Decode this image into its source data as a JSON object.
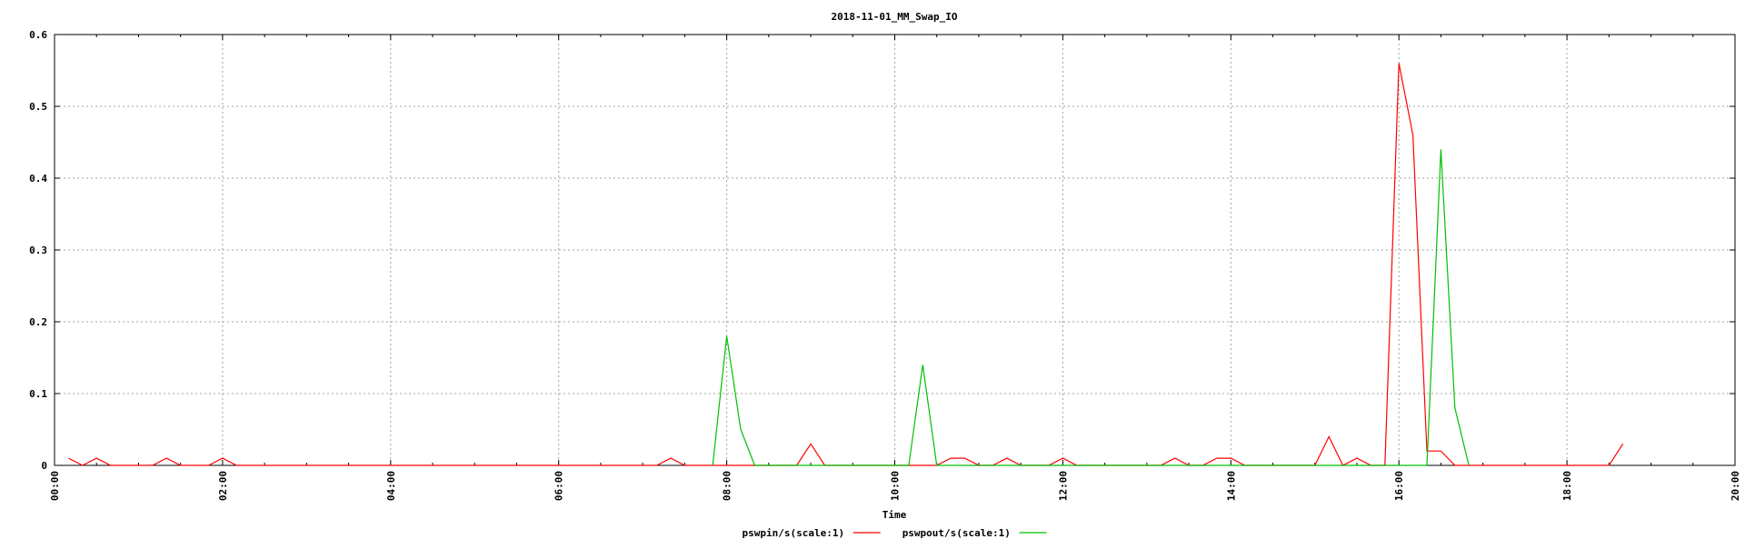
{
  "chart_data": {
    "type": "line",
    "title": "2018-11-01_MM_Swap_IO",
    "xlabel": "Time",
    "ylabel": "",
    "ylim": [
      0,
      0.6
    ],
    "xlim": [
      "00:00",
      "20:00"
    ],
    "yticks": [
      "0",
      "0.1",
      "0.2",
      "0.3",
      "0.4",
      "0.5",
      "0.6"
    ],
    "xticks": [
      "00:00",
      "02:00",
      "04:00",
      "06:00",
      "08:00",
      "10:00",
      "12:00",
      "14:00",
      "16:00",
      "18:00",
      "20:00"
    ],
    "grid": true,
    "legend_position": "bottom-center",
    "series": [
      {
        "name": "pswpin/s(scale:1)",
        "color": "#ff0000",
        "x": [
          "00:10",
          "00:20",
          "00:30",
          "00:40",
          "00:50",
          "01:00",
          "01:10",
          "01:20",
          "01:30",
          "01:40",
          "01:50",
          "02:00",
          "02:10",
          "02:20",
          "02:30",
          "07:00",
          "07:10",
          "07:20",
          "07:30",
          "08:50",
          "09:00",
          "09:10",
          "09:20",
          "10:20",
          "10:30",
          "10:40",
          "10:50",
          "11:00",
          "11:10",
          "11:20",
          "11:30",
          "11:40",
          "11:50",
          "12:00",
          "12:10",
          "12:20",
          "13:00",
          "13:10",
          "13:20",
          "13:30",
          "13:40",
          "13:50",
          "14:00",
          "14:10",
          "14:20",
          "14:30",
          "15:00",
          "15:10",
          "15:20",
          "15:30",
          "15:40",
          "15:50",
          "16:00",
          "16:10",
          "16:20",
          "16:30",
          "16:40",
          "16:50",
          "17:00",
          "18:20",
          "18:30",
          "18:40"
        ],
        "values": [
          0.01,
          0,
          0.01,
          0,
          0,
          0,
          0,
          0.01,
          0,
          0,
          0,
          0.01,
          0,
          0,
          0,
          0,
          0,
          0.01,
          0,
          0,
          0.03,
          0,
          0,
          0,
          0,
          0.01,
          0.01,
          0,
          0,
          0.01,
          0,
          0,
          0,
          0.01,
          0,
          0,
          0,
          0,
          0.01,
          0,
          0,
          0.01,
          0.01,
          0,
          0,
          0,
          0,
          0.04,
          0,
          0.01,
          0,
          0,
          0.56,
          0.46,
          0.02,
          0.02,
          0,
          0,
          0,
          0,
          0,
          0.03
        ]
      },
      {
        "name": "pswpout/s(scale:1)",
        "color": "#00c000",
        "x": [
          "07:50",
          "08:00",
          "08:10",
          "08:20",
          "08:30",
          "10:10",
          "10:20",
          "10:30",
          "10:40",
          "16:10",
          "16:20",
          "16:30",
          "16:40",
          "16:50"
        ],
        "values": [
          0,
          0.18,
          0.05,
          0,
          0,
          0,
          0.14,
          0,
          0,
          0,
          0,
          0.44,
          0.08,
          0
        ]
      }
    ]
  }
}
